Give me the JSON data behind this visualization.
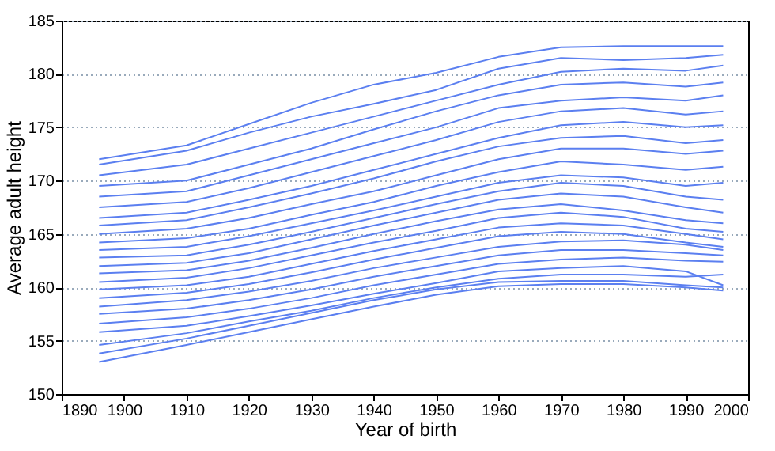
{
  "chart_data": {
    "type": "line",
    "xlabel": "Year of birth",
    "ylabel": "Average adult height",
    "xlim": [
      1890,
      2000
    ],
    "ylim": [
      150,
      185
    ],
    "xticks": [
      1890,
      1900,
      1910,
      1920,
      1930,
      1940,
      1950,
      1960,
      1970,
      1980,
      1990,
      2000
    ],
    "yticks": [
      150,
      155,
      160,
      165,
      170,
      175,
      180,
      185
    ],
    "grid": "y",
    "x": [
      1896,
      1910,
      1920,
      1930,
      1940,
      1950,
      1960,
      1970,
      1980,
      1990,
      1996
    ],
    "series": [
      {
        "color": "#5b7ff0",
        "values": [
          172,
          173.3,
          175.3,
          177.3,
          179,
          180.1,
          181.6,
          182.5,
          182.6,
          182.6,
          182.6
        ]
      },
      {
        "color": "#5b7ff0",
        "values": [
          171.5,
          172.8,
          174.5,
          176,
          177.2,
          178.5,
          180.5,
          181.5,
          181.3,
          181.5,
          181.8
        ]
      },
      {
        "color": "#5b7ff0",
        "values": [
          170.5,
          171.5,
          173,
          174.5,
          176,
          177.5,
          179,
          180.2,
          180.5,
          180.3,
          180.8
        ]
      },
      {
        "color": "#5b7ff0",
        "values": [
          169.5,
          170,
          171.5,
          173,
          174.8,
          176.5,
          178,
          179,
          179.2,
          178.8,
          179.2
        ]
      },
      {
        "color": "#5b7ff0",
        "values": [
          168.5,
          169,
          170.5,
          172,
          173.5,
          175,
          176.8,
          177.5,
          177.8,
          177.5,
          178
        ]
      },
      {
        "color": "#5b7ff0",
        "values": [
          167.5,
          168,
          169.3,
          170.8,
          172.3,
          173.8,
          175.5,
          176.5,
          176.8,
          176.2,
          176.5
        ]
      },
      {
        "color": "#5b7ff0",
        "values": [
          166.5,
          167,
          168.2,
          169.5,
          171,
          172.5,
          174,
          175.2,
          175.5,
          175,
          175.2
        ]
      },
      {
        "color": "#5b7ff0",
        "values": [
          165.8,
          166.3,
          167.5,
          168.8,
          170.2,
          171.8,
          173.2,
          174,
          174.2,
          173.5,
          173.8
        ]
      },
      {
        "color": "#5b7ff0",
        "values": [
          165,
          165.5,
          166.5,
          167.8,
          169,
          170.5,
          172,
          173,
          173,
          172.5,
          172.8
        ]
      },
      {
        "color": "#5b7ff0",
        "values": [
          164.2,
          164.6,
          165.5,
          166.8,
          168,
          169.5,
          170.8,
          171.8,
          171.5,
          171,
          171.3
        ]
      },
      {
        "color": "#5b7ff0",
        "values": [
          163.5,
          163.8,
          164.8,
          166,
          167.2,
          168.5,
          169.8,
          170.5,
          170.3,
          169.5,
          169.8
        ]
      },
      {
        "color": "#5b7ff0",
        "values": [
          162.8,
          163,
          164,
          165.2,
          166.5,
          167.8,
          169,
          169.8,
          169.5,
          168.5,
          168.2
        ]
      },
      {
        "color": "#5b7ff0",
        "values": [
          162,
          162.3,
          163.2,
          164.5,
          165.8,
          167,
          168.2,
          168.8,
          168.5,
          167.5,
          167
        ]
      },
      {
        "color": "#5b7ff0",
        "values": [
          161.3,
          161.6,
          162.5,
          163.7,
          165,
          166.2,
          167.3,
          167.8,
          167.2,
          166.3,
          166
        ]
      },
      {
        "color": "#5b7ff0",
        "values": [
          160.5,
          160.9,
          161.8,
          163,
          164.2,
          165.3,
          166.5,
          167,
          166.6,
          165.5,
          165.2
        ]
      },
      {
        "color": "#5b7ff0",
        "values": [
          159.8,
          160.2,
          161,
          162.2,
          163.4,
          164.5,
          165.6,
          166,
          165.8,
          165,
          164.5
        ]
      },
      {
        "color": "#5b7ff0",
        "values": [
          159,
          159.5,
          160.3,
          161.4,
          162.6,
          163.7,
          164.8,
          165.2,
          165,
          164.2,
          163.8
        ]
      },
      {
        "color": "#5b7ff0",
        "values": [
          158.2,
          158.8,
          159.6,
          160.6,
          161.8,
          162.8,
          163.8,
          164.3,
          164.4,
          164,
          163.5
        ]
      },
      {
        "color": "#5b7ff0",
        "values": [
          157.5,
          158,
          158.8,
          159.8,
          161,
          162,
          163,
          163.5,
          163.5,
          163.2,
          163
        ]
      },
      {
        "color": "#5b7ff0",
        "values": [
          156.6,
          157.2,
          158,
          159,
          160.2,
          161.2,
          162.2,
          162.6,
          162.8,
          162.5,
          162.4
        ]
      },
      {
        "color": "#5b7ff0",
        "values": [
          155.8,
          156.4,
          157.3,
          158.3,
          159.4,
          160.4,
          161.5,
          161.8,
          162,
          161.5,
          160.2
        ]
      },
      {
        "color": "#5b7ff0",
        "values": [
          154.6,
          155.7,
          156.8,
          157.8,
          159,
          160,
          160.8,
          161.2,
          161.2,
          161,
          161.2
        ]
      },
      {
        "color": "#5b7ff0",
        "values": [
          153.8,
          155.2,
          156.4,
          157.6,
          158.8,
          159.8,
          160.5,
          160.6,
          160.6,
          160.2,
          160
        ]
      },
      {
        "color": "#5b7ff0",
        "values": [
          153,
          154.6,
          155.8,
          157,
          158.2,
          159.3,
          160.1,
          160.3,
          160.3,
          160,
          159.7
        ]
      }
    ]
  }
}
